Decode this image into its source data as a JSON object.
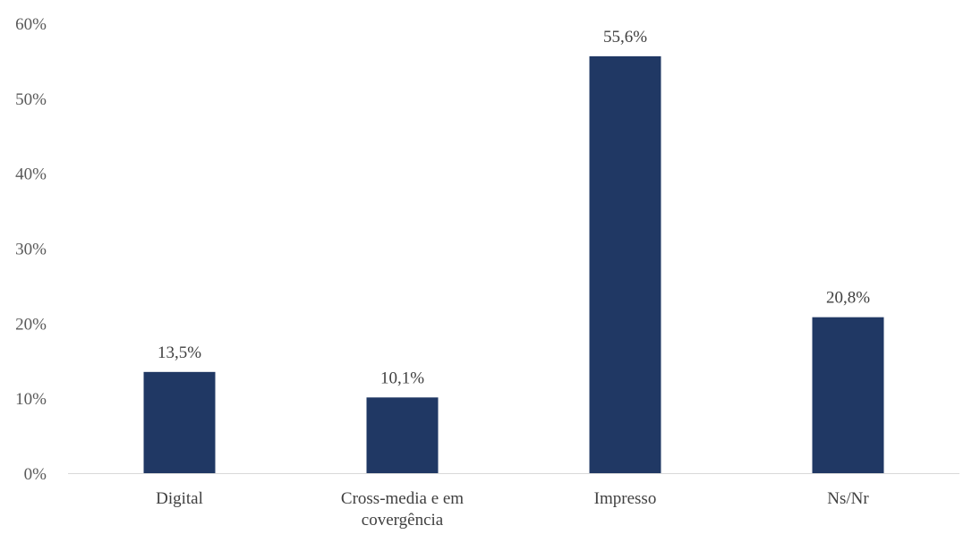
{
  "chart_data": {
    "type": "bar",
    "title": "",
    "xlabel": "",
    "ylabel": "",
    "categories": [
      [
        "Digital"
      ],
      [
        "Cross-media e em",
        "covergência"
      ],
      [
        "Impresso"
      ],
      [
        "Ns/Nr"
      ]
    ],
    "values": [
      13.5,
      10.1,
      55.6,
      20.8
    ],
    "data_labels": [
      "13,5%",
      "10,1%",
      "55,6%",
      "20,8%"
    ],
    "ylim": [
      0,
      60
    ],
    "yticks": [
      0,
      10,
      20,
      30,
      40,
      50,
      60
    ],
    "ytick_labels": [
      "0%",
      "10%",
      "20%",
      "30%",
      "40%",
      "50%",
      "60%"
    ],
    "grid": false,
    "legend": "none",
    "colors": {
      "bar": "#203864",
      "axis": "#d9d9d9"
    }
  }
}
